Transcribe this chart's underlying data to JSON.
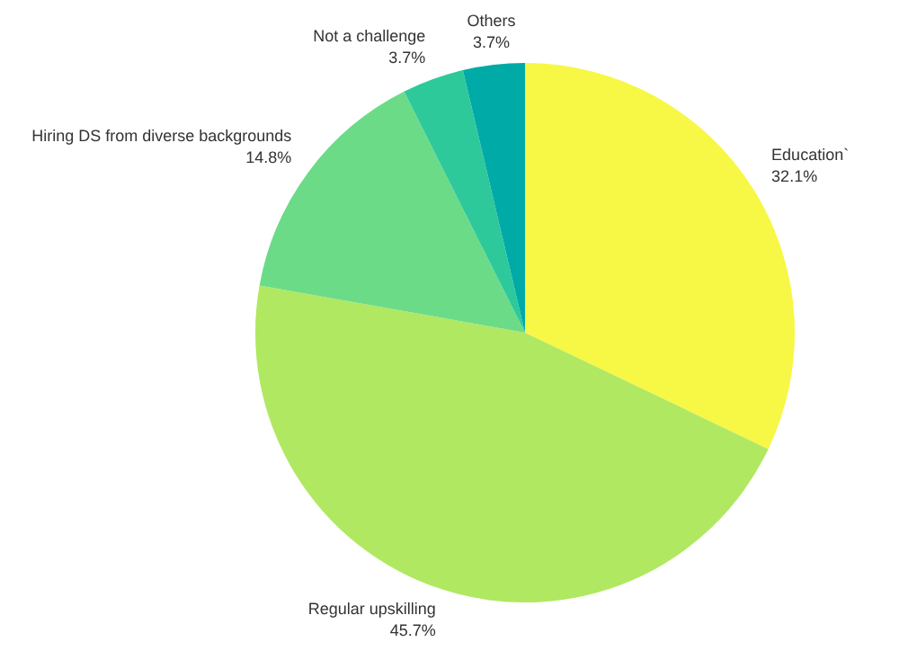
{
  "chart_data": {
    "type": "pie",
    "categories": [
      "Education`",
      "Regular upskilling",
      "Hiring DS from diverse backgrounds",
      "Not a challenge",
      "Others"
    ],
    "values": [
      32.1,
      45.7,
      14.8,
      3.7,
      3.7
    ],
    "value_labels": [
      "32.1%",
      "45.7%",
      "14.8%",
      "3.7%",
      "3.7%"
    ],
    "colors": [
      "#f7f746",
      "#b0e862",
      "#6cdb87",
      "#2ec99a",
      "#00aaa6"
    ]
  }
}
